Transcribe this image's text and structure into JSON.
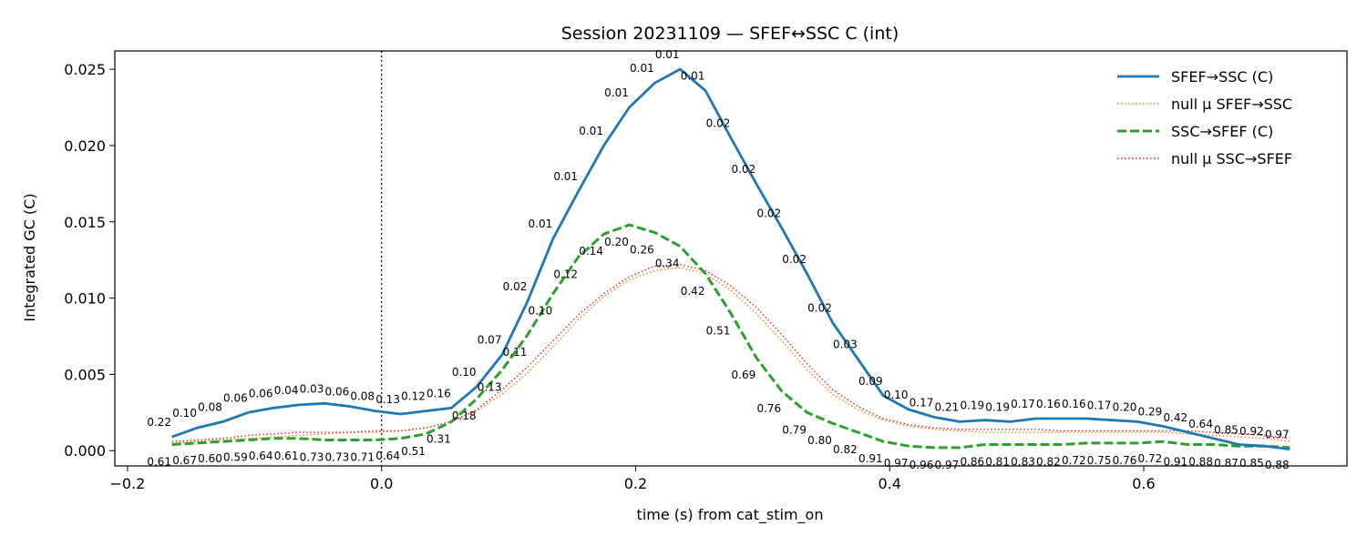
{
  "chart_data": {
    "type": "line",
    "title": "Session 20231109 — SFEF↔SSC C (int)",
    "xlabel": "time (s) from cat_stim_on",
    "ylabel": "Integrated GC (C)",
    "xlim": [
      -0.21,
      0.76
    ],
    "ylim": [
      -0.001,
      0.0262
    ],
    "xticks": [
      -0.2,
      0.0,
      0.2,
      0.4,
      0.6
    ],
    "xtick_labels": [
      "−0.2",
      "0.0",
      "0.2",
      "0.4",
      "0.6"
    ],
    "yticks": [
      0.0,
      0.005,
      0.01,
      0.015,
      0.02,
      0.025
    ],
    "ytick_labels": [
      "0.000",
      "0.005",
      "0.010",
      "0.015",
      "0.020",
      "0.025"
    ],
    "event_line_x": 0.0,
    "legend_position": "top-right",
    "x": [
      -0.165,
      -0.145,
      -0.125,
      -0.105,
      -0.085,
      -0.065,
      -0.045,
      -0.025,
      -0.005,
      0.015,
      0.035,
      0.055,
      0.075,
      0.095,
      0.115,
      0.135,
      0.155,
      0.175,
      0.195,
      0.215,
      0.235,
      0.255,
      0.275,
      0.295,
      0.315,
      0.335,
      0.355,
      0.375,
      0.395,
      0.415,
      0.435,
      0.455,
      0.475,
      0.495,
      0.515,
      0.535,
      0.555,
      0.575,
      0.595,
      0.615,
      0.635,
      0.655,
      0.675,
      0.695,
      0.715
    ],
    "series": [
      {
        "name": "SFEF→SSC (C)",
        "color": "#1f77b4",
        "style": "solid",
        "values": [
          0.0009,
          0.0015,
          0.0019,
          0.0025,
          0.0028,
          0.003,
          0.0031,
          0.0029,
          0.0026,
          0.0024,
          0.0026,
          0.0028,
          0.0042,
          0.0063,
          0.0098,
          0.0139,
          0.017,
          0.02,
          0.0225,
          0.0241,
          0.025,
          0.0236,
          0.0205,
          0.0175,
          0.0146,
          0.0116,
          0.0084,
          0.006,
          0.0036,
          0.0027,
          0.0022,
          0.0019,
          0.002,
          0.0019,
          0.0021,
          0.0021,
          0.0021,
          0.002,
          0.0019,
          0.0016,
          0.0012,
          0.0008,
          0.0004,
          0.0003,
          0.0001
        ],
        "labels": [
          "0.22",
          "0.10",
          "0.08",
          "0.06",
          "0.06",
          "0.04",
          "0.03",
          "0.06",
          "0.08",
          "0.13",
          "0.12",
          "0.16",
          "0.10",
          "0.07",
          "0.02",
          "0.01",
          "0.01",
          "0.01",
          "0.01",
          "0.01",
          "0.01",
          "0.01",
          "0.02",
          "0.02",
          "0.02",
          "0.02",
          "0.02",
          "0.03",
          "0.09",
          "0.10",
          "0.17",
          "0.21",
          "0.19",
          "0.19",
          "0.17",
          "0.16",
          "0.16",
          "0.17",
          "0.20",
          "0.29",
          "0.42",
          "0.64",
          "0.85",
          "0.92",
          "0.97"
        ]
      },
      {
        "name": "null μ SFEF→SSC",
        "color": "#ff7f0e",
        "style": "dotted",
        "values": [
          0.0005,
          0.0006,
          0.0007,
          0.0008,
          0.0009,
          0.001,
          0.0011,
          0.0012,
          0.0012,
          0.0013,
          0.0015,
          0.0019,
          0.0026,
          0.0037,
          0.0051,
          0.0068,
          0.0086,
          0.0101,
          0.0112,
          0.0118,
          0.012,
          0.0116,
          0.0105,
          0.009,
          0.0072,
          0.0053,
          0.0037,
          0.0027,
          0.002,
          0.0016,
          0.0014,
          0.0013,
          0.0012,
          0.0012,
          0.0012,
          0.0012,
          0.0012,
          0.0012,
          0.0012,
          0.0012,
          0.0011,
          0.001,
          0.0009,
          0.0008,
          0.0006
        ]
      },
      {
        "name": "SSC→SFEF (C)",
        "color": "#2ca02c",
        "style": "dashed",
        "values": [
          0.0004,
          0.0005,
          0.0006,
          0.0007,
          0.0008,
          0.0008,
          0.0007,
          0.0007,
          0.0007,
          0.0008,
          0.0011,
          0.0019,
          0.0034,
          0.0053,
          0.0076,
          0.0103,
          0.0127,
          0.0142,
          0.0148,
          0.0143,
          0.0134,
          0.0116,
          0.009,
          0.0061,
          0.0039,
          0.0025,
          0.0018,
          0.0012,
          0.0006,
          0.0003,
          0.0002,
          0.0002,
          0.0004,
          0.0004,
          0.0004,
          0.0004,
          0.0005,
          0.0005,
          0.0005,
          0.0006,
          0.0004,
          0.0004,
          0.0003,
          0.0003,
          0.0002
        ],
        "labels": [
          "0.61",
          "0.67",
          "0.60",
          "0.59",
          "0.64",
          "0.61",
          "0.73",
          "0.73",
          "0.71",
          "0.64",
          "0.51",
          "0.31",
          "0.18",
          "0.13",
          "0.11",
          "0.10",
          "0.12",
          "0.14",
          "0.20",
          "0.26",
          "0.34",
          "0.42",
          "0.51",
          "0.69",
          "0.76",
          "0.79",
          "0.80",
          "0.82",
          "0.91",
          "0.97",
          "0.96",
          "0.97",
          "0.86",
          "0.81",
          "0.83",
          "0.82",
          "0.72",
          "0.75",
          "0.76",
          "0.72",
          "0.91",
          "0.88",
          "0.87",
          "0.85",
          "0.88"
        ]
      },
      {
        "name": "null μ SSC→SFEF",
        "color": "#d62728",
        "style": "dotted",
        "values": [
          0.0006,
          0.0007,
          0.0008,
          0.001,
          0.0011,
          0.0012,
          0.0012,
          0.0012,
          0.0013,
          0.0013,
          0.0015,
          0.0019,
          0.0027,
          0.004,
          0.0055,
          0.0072,
          0.0089,
          0.0103,
          0.0114,
          0.0121,
          0.0122,
          0.0118,
          0.0108,
          0.0094,
          0.0076,
          0.0057,
          0.004,
          0.0029,
          0.0021,
          0.0017,
          0.0015,
          0.0014,
          0.0014,
          0.0014,
          0.0014,
          0.0013,
          0.0013,
          0.0013,
          0.0013,
          0.0013,
          0.0013,
          0.0012,
          0.0011,
          0.001,
          0.0008
        ]
      }
    ]
  }
}
